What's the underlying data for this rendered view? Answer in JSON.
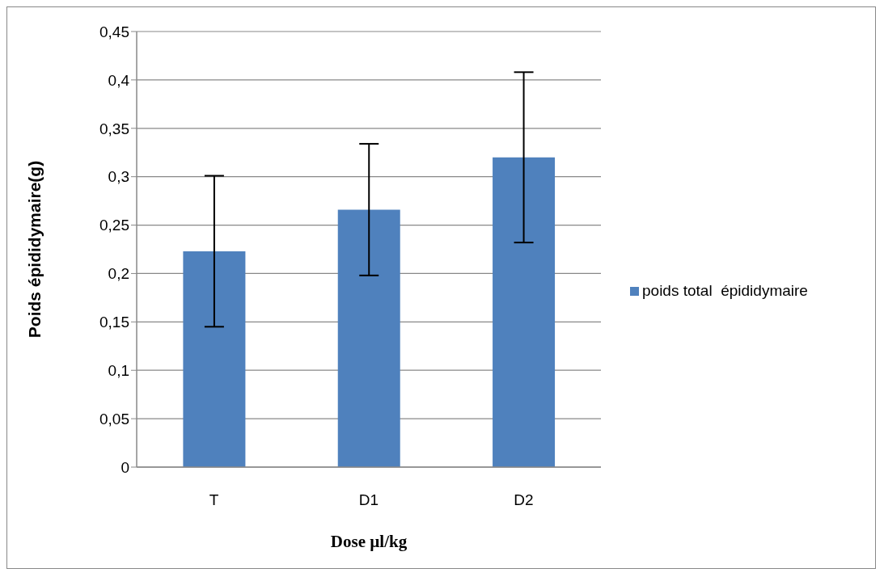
{
  "chart_data": {
    "type": "bar",
    "xlabel": "Dose µl/kg",
    "ylabel": "Poids  épididymaire(g)",
    "categories": [
      "T",
      "D1",
      "D2"
    ],
    "series": [
      {
        "name": "poids total  épididymaire",
        "color": "#4f81bd",
        "values": [
          0.223,
          0.266,
          0.32
        ],
        "errors": [
          0.078,
          0.068,
          0.088
        ]
      }
    ],
    "ylim": [
      0,
      0.45
    ],
    "yticks": [
      0,
      {
        "value": 0.05,
        "label": "0,05"
      },
      {
        "value": 0.1,
        "label": "0,1"
      },
      {
        "value": 0.15,
        "label": "0,15"
      },
      {
        "value": 0.2,
        "label": "0,2"
      },
      {
        "value": 0.25,
        "label": "0,25"
      },
      {
        "value": 0.3,
        "label": "0,3"
      },
      {
        "value": 0.35,
        "label": "0,35"
      },
      {
        "value": 0.4,
        "label": "0,4"
      },
      {
        "value": 0.45,
        "label": "0,45"
      }
    ],
    "grid": "y",
    "legend": "right"
  }
}
